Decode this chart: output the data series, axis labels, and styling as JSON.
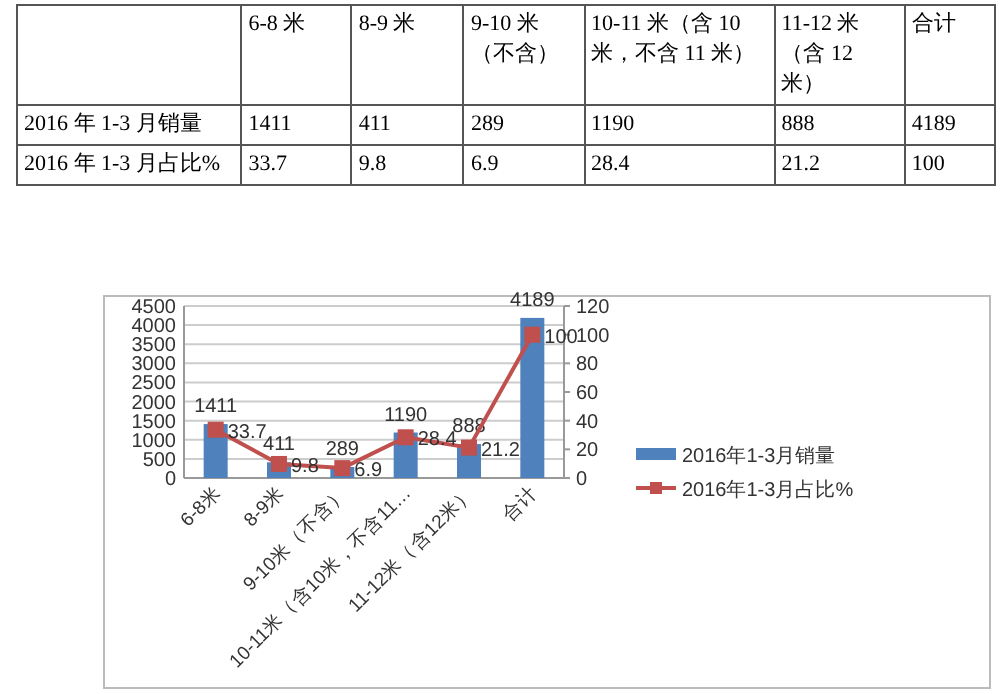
{
  "chart_data": [
    {
      "type": "other",
      "categories": [
        "6-8 米",
        "8-9 米",
        "9-10 米（不含）",
        "10-11 米（含 10 米，不含 11 米）",
        "11-12 米（含 12 米）",
        "合计"
      ],
      "data_labels": true,
      "series": [
        {
          "name": "2016 年 1-3 月销量",
          "values": [
            1411,
            411,
            289,
            1190,
            888,
            4189
          ]
        },
        {
          "name": "2016 年 1-3 月占比%",
          "values": [
            33.7,
            9.8,
            6.9,
            28.4,
            21.2,
            100
          ]
        }
      ]
    },
    {
      "type": "bar",
      "categories": [
        "6-8米",
        "8-9米",
        "9-10米（不含）",
        "10-11米（含10米，不含11…",
        "11-12米（含12米）",
        "合计"
      ],
      "ylim": [
        0,
        4500
      ],
      "yticks": [
        0,
        500,
        1000,
        1500,
        2000,
        2500,
        3000,
        3500,
        4000,
        4500
      ],
      "y2lim": [
        0,
        120
      ],
      "y2ticks": [
        0,
        20,
        40,
        60,
        80,
        100,
        120
      ],
      "grid": "y",
      "legend": "right",
      "data_labels": true,
      "marker": "square",
      "series": [
        {
          "name": "2016年1-3月销量",
          "type": "bar",
          "color": "#4f81bd",
          "values": [
            1411,
            411,
            289,
            1190,
            888,
            4189
          ]
        },
        {
          "name": "2016年1-3月占比%",
          "type": "line",
          "axis": "y2",
          "color": "#c0504d",
          "values": [
            33.7,
            9.8,
            6.9,
            28.4,
            21.2,
            100
          ]
        }
      ]
    }
  ]
}
